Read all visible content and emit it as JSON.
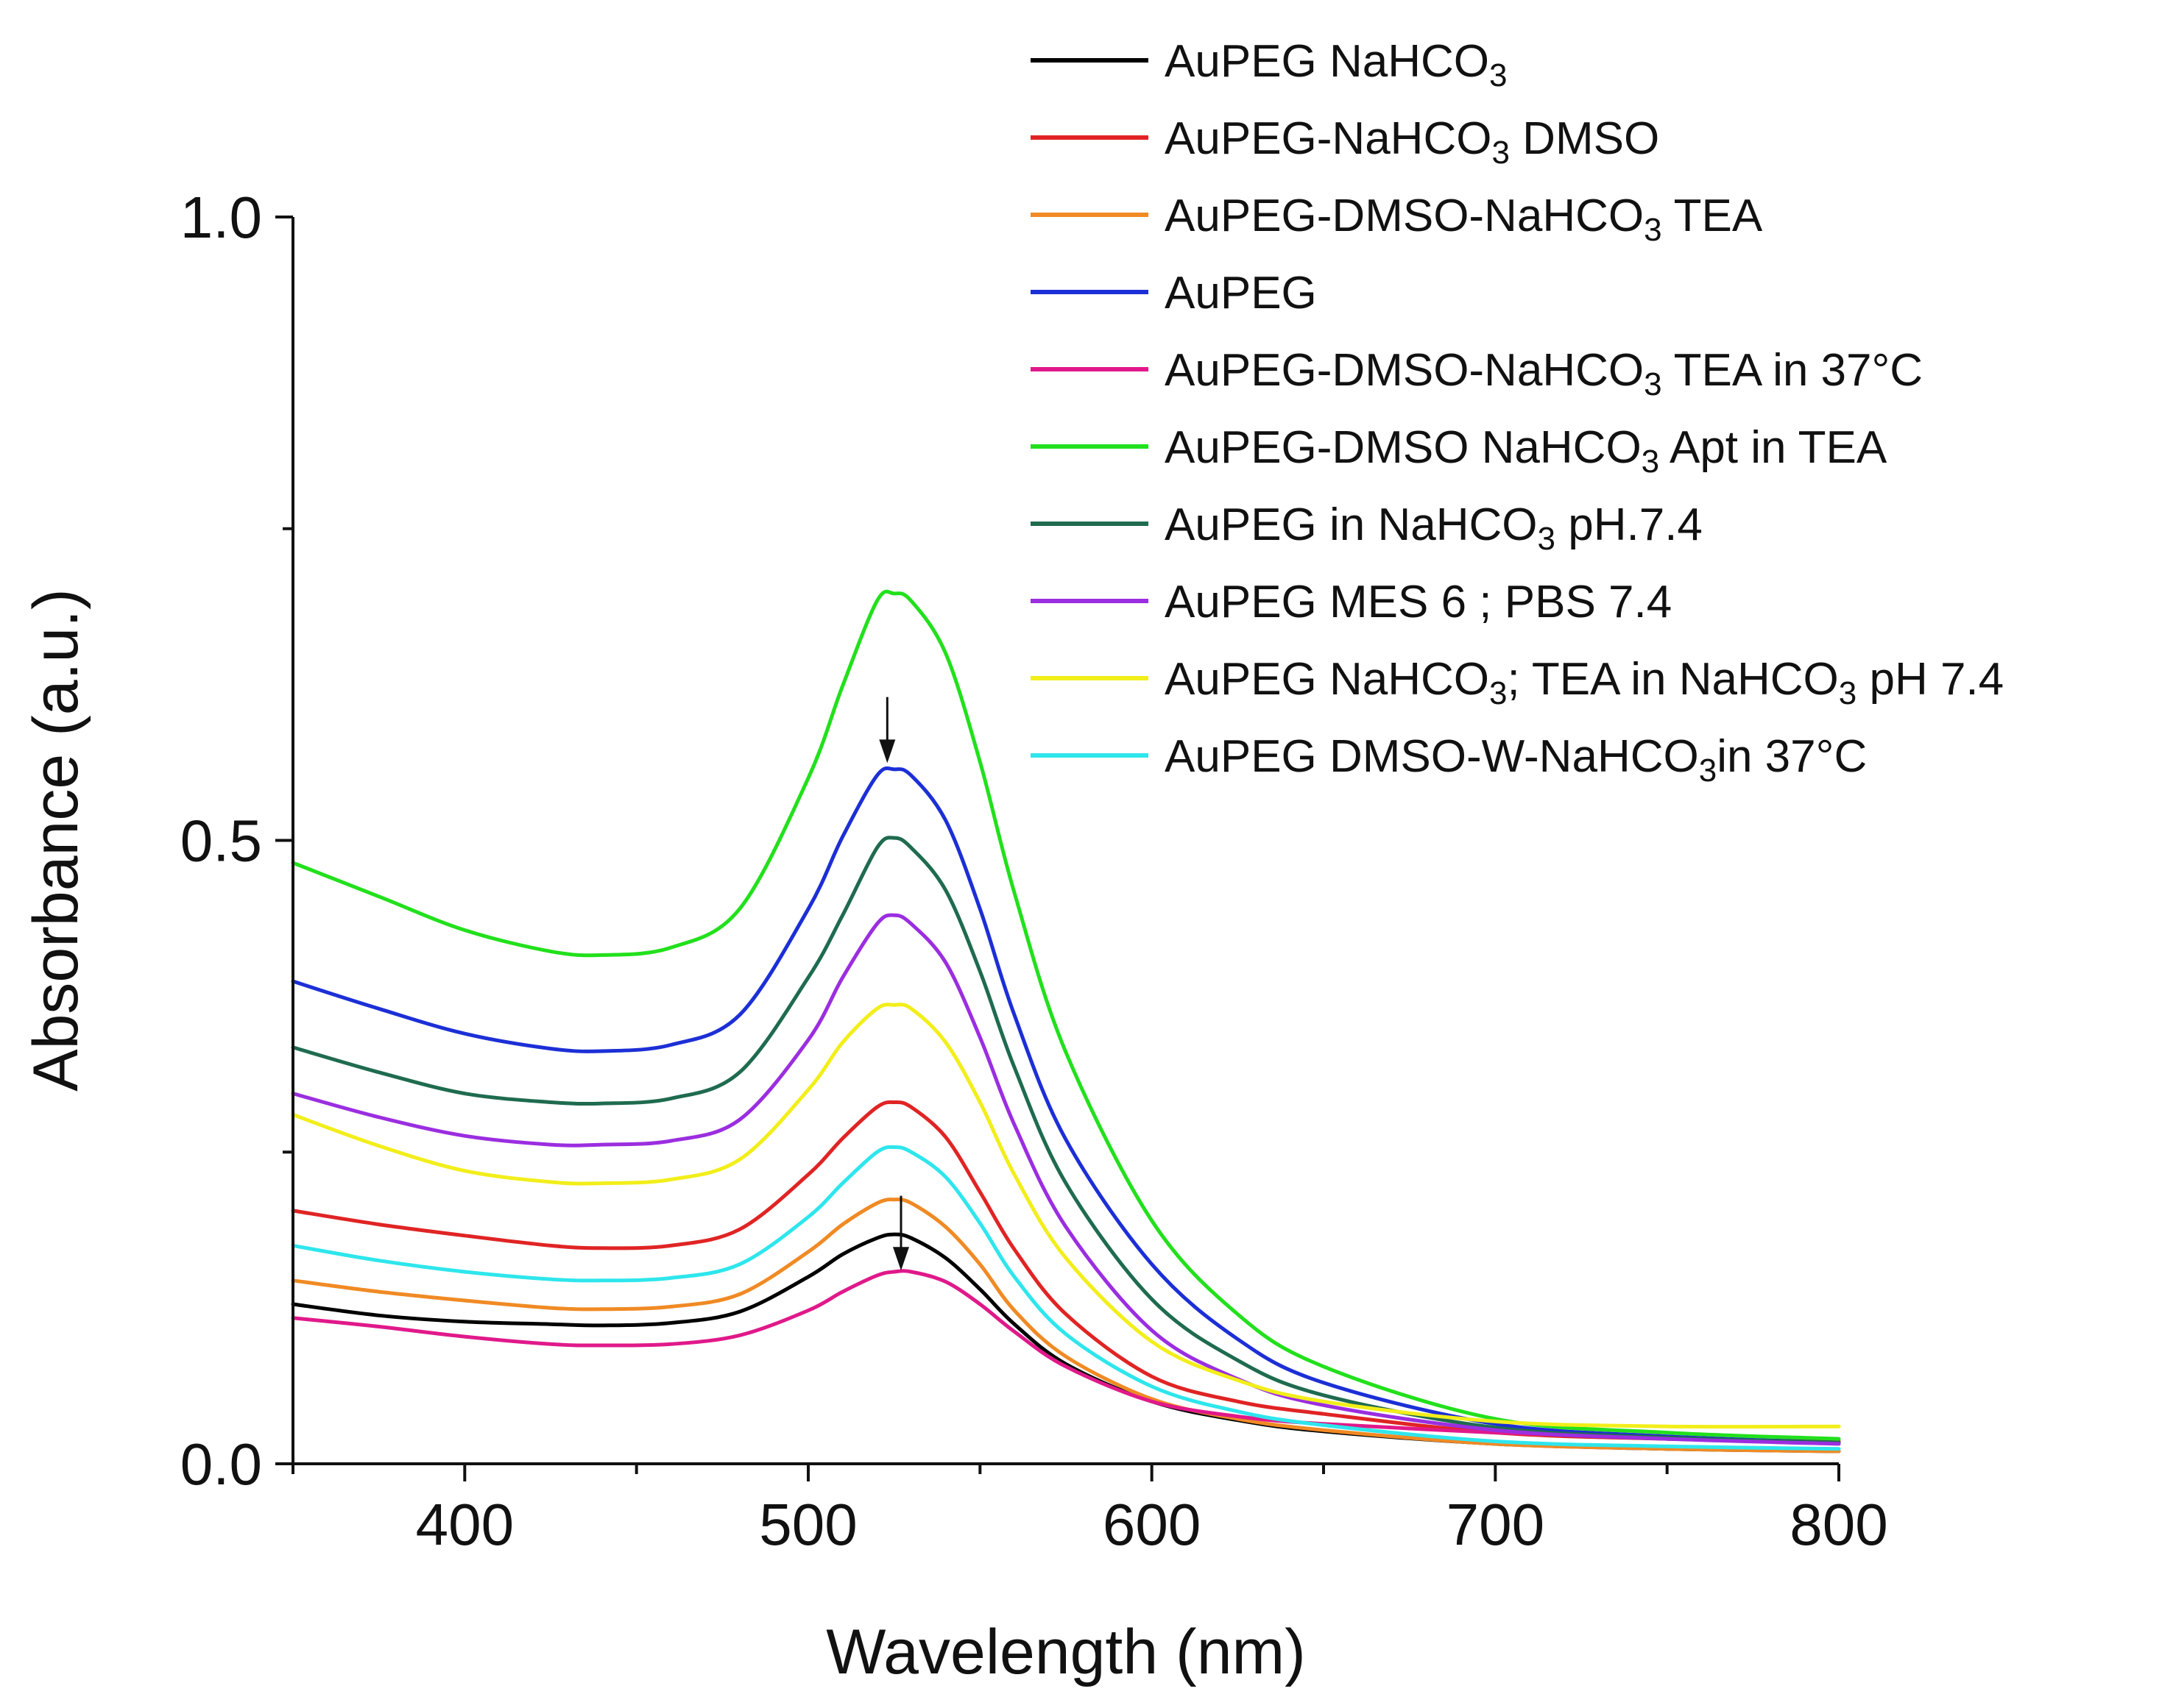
{
  "chart_data": {
    "type": "line",
    "xlabel": "Wavelength (nm)",
    "ylabel": "Absorbance (a.u.)",
    "xlim": [
      350,
      800
    ],
    "ylim": [
      0,
      1.0
    ],
    "xticks": [
      400,
      500,
      600,
      700,
      800
    ],
    "xtick_labels": [
      "400",
      "500",
      "600",
      "700",
      "800"
    ],
    "yticks": [
      0.0,
      0.5,
      1.0
    ],
    "ytick_labels": [
      "0.0",
      "0.5",
      "1.0"
    ],
    "legend_position": "top-right",
    "grid": false,
    "x": [
      350,
      375,
      400,
      425,
      440,
      460,
      480,
      500,
      510,
      520,
      525,
      530,
      540,
      550,
      560,
      575,
      600,
      625,
      650,
      700,
      750,
      800
    ],
    "series": [
      {
        "key": "s0",
        "name": "AuPEG NaHCO3",
        "color": "#000000",
        "label_main": "AuPEG NaHCO",
        "sub": "3",
        "label_tail": "",
        "values": [
          0.128,
          0.119,
          0.114,
          0.112,
          0.111,
          0.113,
          0.122,
          0.15,
          0.168,
          0.181,
          0.184,
          0.181,
          0.165,
          0.14,
          0.112,
          0.08,
          0.05,
          0.035,
          0.026,
          0.016,
          0.012,
          0.01
        ]
      },
      {
        "key": "s1",
        "name": "AuPEG-NaHCO3 DMSO",
        "color": "#e02424",
        "label_main": "AuPEG-NaHCO",
        "sub": "3",
        "label_tail": " DMSO",
        "values": [
          0.203,
          0.192,
          0.183,
          0.175,
          0.173,
          0.175,
          0.188,
          0.232,
          0.261,
          0.286,
          0.29,
          0.286,
          0.262,
          0.218,
          0.172,
          0.12,
          0.07,
          0.05,
          0.04,
          0.025,
          0.02,
          0.018
        ]
      },
      {
        "key": "s2",
        "name": "AuPEG-DMSO-NaHCO3 TEA",
        "color": "#f08a24",
        "label_main": "AuPEG-DMSO-NaHCO",
        "sub": "3",
        "label_tail": " TEA",
        "values": [
          0.147,
          0.138,
          0.131,
          0.125,
          0.124,
          0.126,
          0.136,
          0.17,
          0.192,
          0.209,
          0.212,
          0.209,
          0.19,
          0.16,
          0.123,
          0.086,
          0.052,
          0.036,
          0.027,
          0.016,
          0.012,
          0.01
        ]
      },
      {
        "key": "s3",
        "name": "AuPEG",
        "color": "#1c2fd6",
        "label_main": "AuPEG",
        "sub": "",
        "label_tail": "",
        "values": [
          0.387,
          0.365,
          0.345,
          0.333,
          0.331,
          0.336,
          0.36,
          0.445,
          0.503,
          0.552,
          0.557,
          0.552,
          0.516,
          0.445,
          0.36,
          0.26,
          0.16,
          0.1,
          0.065,
          0.032,
          0.022,
          0.017
        ]
      },
      {
        "key": "s4",
        "name": "AuPEG-DMSO-NaHCO3 TEA in 37°C",
        "color": "#e0198a",
        "label_main": "AuPEG-DMSO-NaHCO",
        "sub": "3",
        "label_tail": " TEA in 37°C",
        "values": [
          0.117,
          0.11,
          0.102,
          0.096,
          0.095,
          0.096,
          0.103,
          0.123,
          0.138,
          0.151,
          0.154,
          0.154,
          0.146,
          0.128,
          0.106,
          0.078,
          0.05,
          0.038,
          0.032,
          0.025,
          0.02,
          0.017
        ]
      },
      {
        "key": "s5",
        "name": "AuPEG-DMSO NaHCO3 Apt in TEA",
        "color": "#22e01c",
        "label_main": "AuPEG-DMSO NaHCO",
        "sub": "3",
        "label_tail": " Apt in TEA",
        "values": [
          0.482,
          0.455,
          0.428,
          0.411,
          0.408,
          0.414,
          0.445,
          0.55,
          0.624,
          0.692,
          0.698,
          0.692,
          0.65,
          0.563,
          0.458,
          0.33,
          0.195,
          0.12,
          0.078,
          0.036,
          0.025,
          0.02
        ]
      },
      {
        "key": "s6",
        "name": "AuPEG in NaHCO3 pH.7.4",
        "color": "#1f6b4f",
        "label_main": "AuPEG in NaHCO",
        "sub": "3",
        "label_tail": " pH.7.4",
        "values": [
          0.334,
          0.314,
          0.297,
          0.29,
          0.289,
          0.293,
          0.314,
          0.39,
          0.44,
          0.494,
          0.502,
          0.494,
          0.46,
          0.395,
          0.318,
          0.225,
          0.132,
          0.083,
          0.055,
          0.029,
          0.021,
          0.017
        ]
      },
      {
        "key": "s7",
        "name": "AuPEG MES 6 ; PBS 7.4",
        "color": "#9b2ee0",
        "label_main": "AuPEG MES 6 ; PBS 7.4",
        "sub": "",
        "label_tail": "",
        "values": [
          0.297,
          0.278,
          0.263,
          0.256,
          0.256,
          0.259,
          0.276,
          0.34,
          0.39,
          0.433,
          0.44,
          0.433,
          0.402,
          0.342,
          0.272,
          0.19,
          0.107,
          0.068,
          0.047,
          0.027,
          0.02,
          0.016
        ]
      },
      {
        "key": "s8",
        "name": "AuPEG NaHCO3; TEA in NaHCO3 pH 7.4",
        "color": "#f2ee1a",
        "label_main": "AuPEG NaHCO",
        "sub": "3",
        "label_tail": "; TEA in NaHCO",
        "sub2": "3",
        "label_tail2": " pH 7.4",
        "values": [
          0.28,
          0.255,
          0.235,
          0.226,
          0.225,
          0.228,
          0.244,
          0.3,
          0.338,
          0.365,
          0.368,
          0.365,
          0.338,
          0.29,
          0.232,
          0.165,
          0.098,
          0.067,
          0.05,
          0.034,
          0.03,
          0.03
        ]
      },
      {
        "key": "s9",
        "name": "AuPEG DMSO-W-NaHCO3 in 37°C",
        "color": "#2ee6ec",
        "label_main": "AuPEG DMSO-W-NaHCO",
        "sub": "3",
        "label_tail": "in 37°C",
        "values": [
          0.175,
          0.163,
          0.154,
          0.148,
          0.147,
          0.149,
          0.16,
          0.198,
          0.225,
          0.25,
          0.254,
          0.25,
          0.23,
          0.193,
          0.15,
          0.104,
          0.062,
          0.042,
          0.031,
          0.018,
          0.014,
          0.012
        ]
      }
    ],
    "annotations": [
      {
        "type": "arrow",
        "direction": "down",
        "x": 523,
        "y_from": 0.615,
        "y_to": 0.562
      },
      {
        "type": "arrow",
        "direction": "down",
        "x": 527,
        "y_from": 0.215,
        "y_to": 0.155
      }
    ]
  }
}
